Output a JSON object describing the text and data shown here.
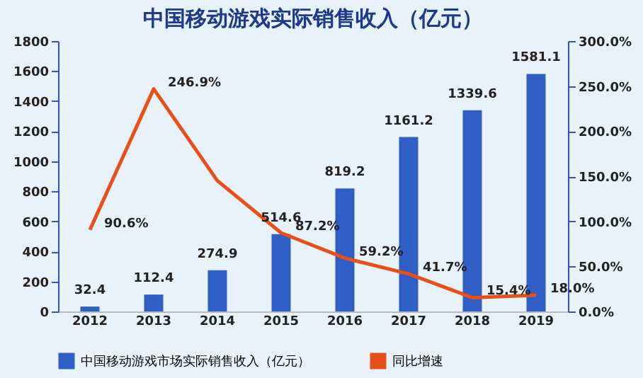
{
  "chart_data": {
    "type": "bar",
    "title": "中国移动游戏实际销售收入（亿元）",
    "categories": [
      "2012",
      "2013",
      "2014",
      "2015",
      "2016",
      "2017",
      "2018",
      "2019"
    ],
    "series": [
      {
        "name": "中国移动游戏市场实际销售收入（亿元）",
        "color": "#2f5fc4",
        "values": [
          32.4,
          112.4,
          274.9,
          514.6,
          819.2,
          1161.2,
          1339.6,
          1581.1
        ],
        "value_labels": [
          "32.4",
          "112.4",
          "274.9",
          "514.6",
          "819.2",
          "1161.2",
          "1339.6",
          "1581.1"
        ]
      },
      {
        "name": "同比增速",
        "type": "line",
        "axis": "y2",
        "color": "#e8501a",
        "values": [
          90.6,
          246.9,
          145,
          87.2,
          59.2,
          41.7,
          15.4,
          18.0
        ],
        "value_labels": [
          "90.6%",
          "246.9%",
          null,
          "87.2%",
          "59.2%",
          "41.7%",
          "15.4%",
          "18.0%"
        ]
      }
    ],
    "ylim": [
      0,
      1800
    ],
    "yticks": [
      0,
      200,
      400,
      600,
      800,
      1000,
      1200,
      1400,
      1600,
      1800
    ],
    "y2lim": [
      0,
      300
    ],
    "y2ticks": [
      {
        "value": 0,
        "label": "0.0%"
      },
      {
        "value": 50,
        "label": "50.0%"
      },
      {
        "value": 100,
        "label": "100.0%"
      },
      {
        "value": 150,
        "label": "150.0%"
      },
      {
        "value": 200,
        "label": "200.0%"
      },
      {
        "value": 250,
        "label": "250.0%"
      },
      {
        "value": 300,
        "label": "300.0%"
      }
    ],
    "legend": "bottom"
  }
}
